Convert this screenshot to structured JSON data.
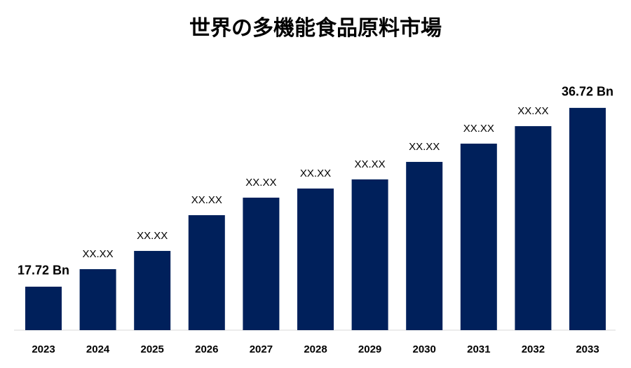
{
  "chart_data": {
    "type": "bar",
    "title": "世界の多機能食品原料市場",
    "categories": [
      "2023",
      "2024",
      "2025",
      "2026",
      "2027",
      "2028",
      "2029",
      "2030",
      "2031",
      "2032",
      "2033"
    ],
    "values": [
      17.72,
      19.58,
      21.52,
      25.32,
      27.18,
      28.15,
      29.12,
      30.98,
      32.92,
      34.78,
      36.72
    ],
    "value_labels": [
      "17.72 Bn",
      "XX.XX",
      "XX.XX",
      "XX.XX",
      "XX.XX",
      "XX.XX",
      "XX.XX",
      "XX.XX",
      "XX.XX",
      "XX.XX",
      "36.72 Bn"
    ],
    "color": "#00205b",
    "ylim": [
      13.1,
      38.5
    ]
  }
}
